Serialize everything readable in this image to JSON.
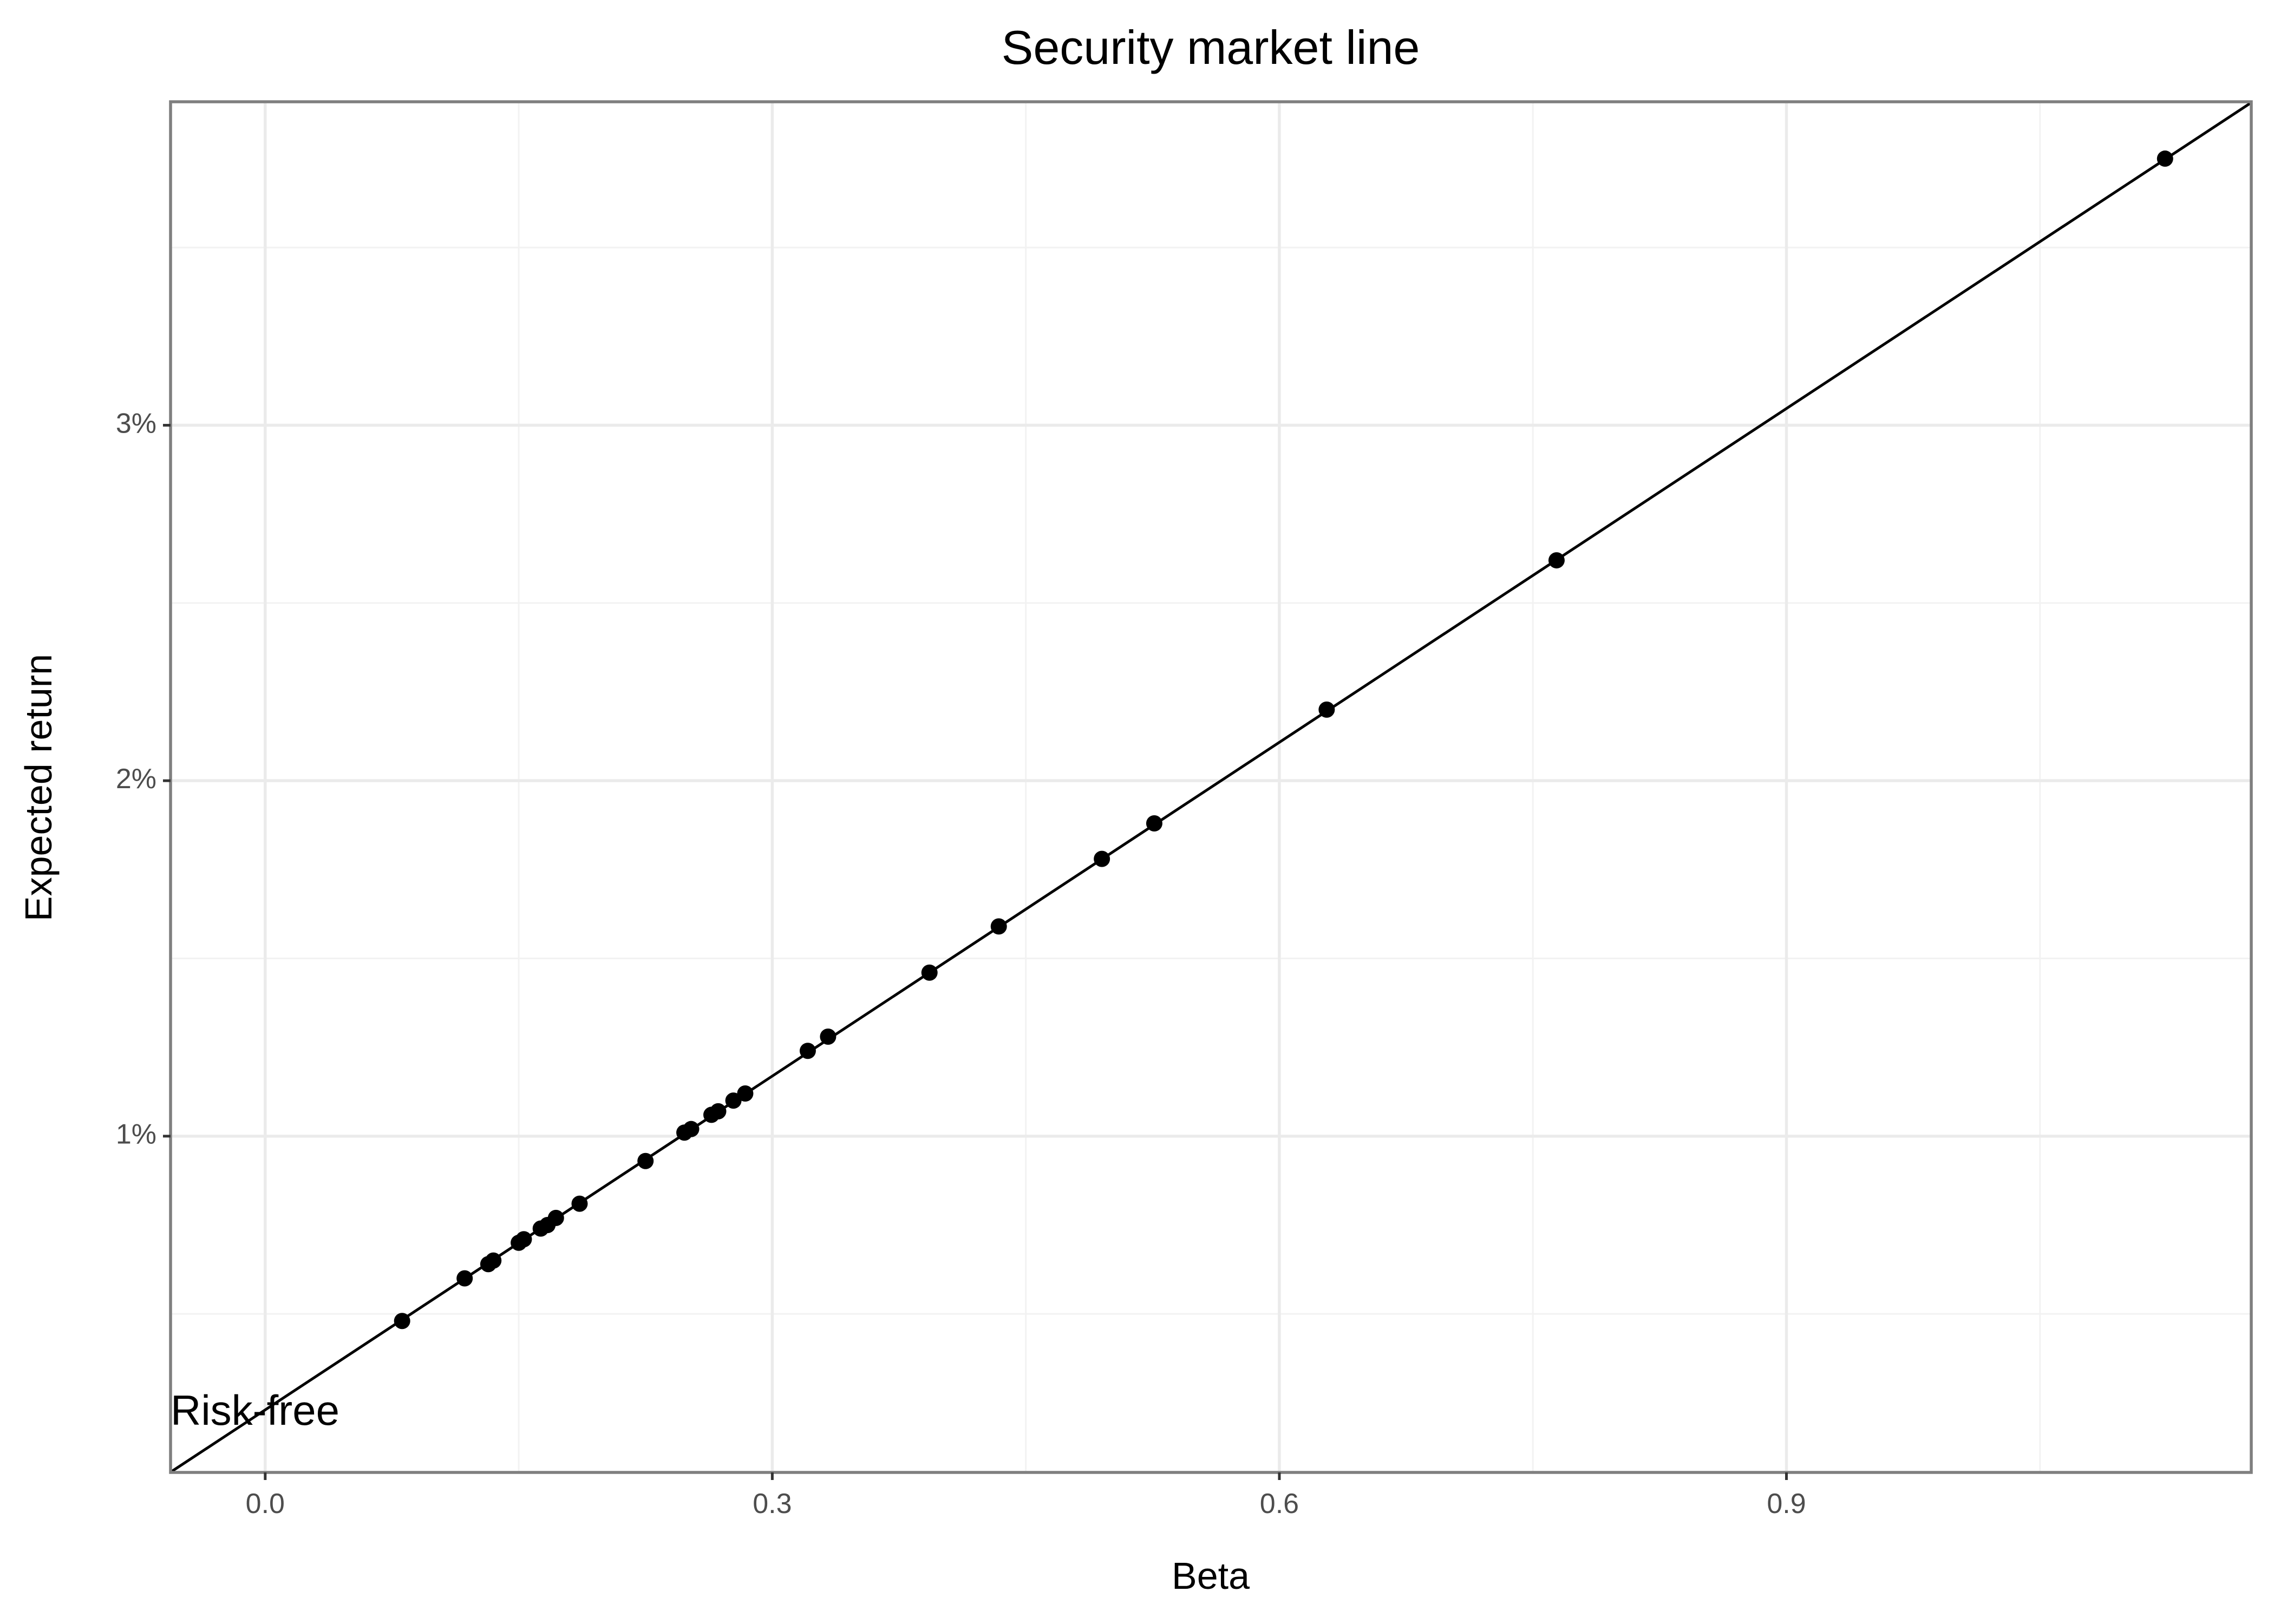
{
  "chart_data": {
    "type": "scatter",
    "title": "Security market line",
    "xlabel": "Beta",
    "ylabel": "Expected return",
    "xlim": [
      -0.056,
      1.175
    ],
    "ylim": [
      0.00054,
      0.0391
    ],
    "x_ticks": [
      0.0,
      0.3,
      0.6,
      0.9
    ],
    "x_tick_labels": [
      "0.0",
      "0.3",
      "0.6",
      "0.9"
    ],
    "y_ticks": [
      0.01,
      0.02,
      0.03
    ],
    "y_tick_labels": [
      "1%",
      "2%",
      "3%"
    ],
    "grid": true,
    "legend": "none",
    "line": {
      "intercept": 0.0023,
      "slope": 0.0313,
      "color": "#000000"
    },
    "annotation": {
      "text": "Risk-free",
      "x": -0.056,
      "y": 0.0023
    },
    "series": [
      {
        "color": "#000000",
        "points": [
          {
            "x": 0.081,
            "y": 0.0048
          },
          {
            "x": 0.118,
            "y": 0.006
          },
          {
            "x": 0.132,
            "y": 0.0064
          },
          {
            "x": 0.135,
            "y": 0.0065
          },
          {
            "x": 0.15,
            "y": 0.007
          },
          {
            "x": 0.153,
            "y": 0.0071
          },
          {
            "x": 0.163,
            "y": 0.0074
          },
          {
            "x": 0.167,
            "y": 0.0075
          },
          {
            "x": 0.172,
            "y": 0.0077
          },
          {
            "x": 0.186,
            "y": 0.0081
          },
          {
            "x": 0.225,
            "y": 0.0093
          },
          {
            "x": 0.248,
            "y": 0.0101
          },
          {
            "x": 0.252,
            "y": 0.0102
          },
          {
            "x": 0.264,
            "y": 0.0106
          },
          {
            "x": 0.268,
            "y": 0.0107
          },
          {
            "x": 0.277,
            "y": 0.011
          },
          {
            "x": 0.284,
            "y": 0.0112
          },
          {
            "x": 0.321,
            "y": 0.0124
          },
          {
            "x": 0.333,
            "y": 0.0128
          },
          {
            "x": 0.393,
            "y": 0.0146
          },
          {
            "x": 0.434,
            "y": 0.0159
          },
          {
            "x": 0.495,
            "y": 0.0178
          },
          {
            "x": 0.526,
            "y": 0.0188
          },
          {
            "x": 0.628,
            "y": 0.022
          },
          {
            "x": 0.764,
            "y": 0.0262
          },
          {
            "x": 1.124,
            "y": 0.0375
          }
        ]
      }
    ]
  }
}
